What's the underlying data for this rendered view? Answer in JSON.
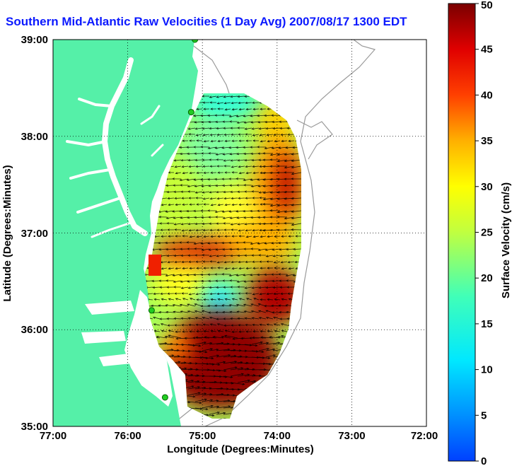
{
  "title": "Southern Mid-Atlantic Raw Velocities (1 Day Avg) 2007/08/17 1300 EDT",
  "x_axis": {
    "label": "Longitude (Degrees:Minutes)",
    "ticks": [
      "77:00",
      "76:00",
      "75:00",
      "74:00",
      "73:00",
      "72:00"
    ]
  },
  "y_axis": {
    "label": "Latitude (Degrees:Minutes)",
    "ticks": [
      "39:00",
      "38:00",
      "37:00",
      "36:00",
      "35:00"
    ]
  },
  "colorbar": {
    "label": "Surface Velocity (cm/s)",
    "ticks": [
      "50",
      "45",
      "40",
      "35",
      "30",
      "25",
      "20",
      "15",
      "10",
      "5",
      "0"
    ],
    "min": 0,
    "max": 50
  },
  "colors": {
    "land": "#55f0a8",
    "title": "#0b19ff",
    "station": "#22cc22"
  },
  "stations_lonlat": [
    [
      -75.1,
      39.0
    ],
    [
      -75.15,
      38.25
    ],
    [
      -75.68,
      36.2
    ],
    [
      -75.5,
      35.3
    ]
  ],
  "velocity_field": {
    "speed_range_cm_s": [
      10,
      50
    ],
    "dominant_direction": "westward, southwest in the south"
  }
}
